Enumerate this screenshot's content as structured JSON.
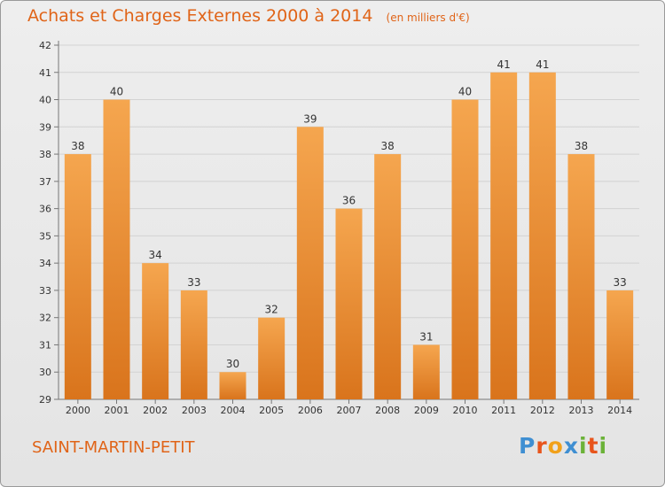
{
  "header": {
    "title": "Achats et Charges Externes 2000 à 2014",
    "unit": "(en milliers d'€)"
  },
  "footer": {
    "commune": "SAINT-MARTIN-PETIT",
    "logo": "Proxiti"
  },
  "colors": {
    "accent": "#e06418",
    "bar_light": "#f5a64f",
    "bar_dark": "#d9741c"
  },
  "chart_data": {
    "type": "bar",
    "title": "Achats et Charges Externes 2000 à 2014",
    "subtitle": "(en milliers d'€)",
    "categories": [
      "2000",
      "2001",
      "2002",
      "2003",
      "2004",
      "2005",
      "2006",
      "2007",
      "2008",
      "2009",
      "2010",
      "2011",
      "2012",
      "2013",
      "2014"
    ],
    "values": [
      38,
      40,
      34,
      33,
      30,
      32,
      39,
      36,
      38,
      31,
      40,
      41,
      41,
      38,
      33
    ],
    "yticks": [
      29,
      30,
      31,
      32,
      33,
      34,
      35,
      36,
      37,
      38,
      39,
      40,
      41,
      42
    ],
    "ylim": [
      29,
      42
    ],
    "grid": true,
    "xlabel": "",
    "ylabel": ""
  }
}
